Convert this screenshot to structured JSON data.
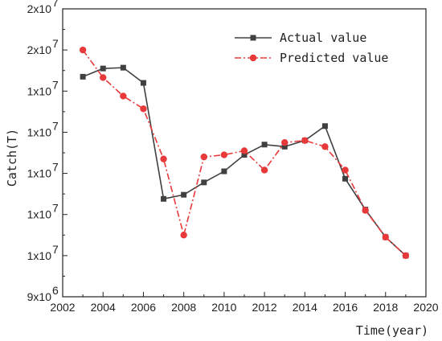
{
  "chart_data": {
    "type": "line",
    "xlabel": "Time(year)",
    "ylabel": "Catch(T)",
    "x": [
      2003,
      2004,
      2005,
      2006,
      2007,
      2008,
      2009,
      2010,
      2011,
      2012,
      2013,
      2014,
      2015,
      2016,
      2017,
      2018,
      2019
    ],
    "xlim": [
      2002,
      2020
    ],
    "ylim": [
      9000000,
      16000000
    ],
    "x_ticks": [
      {
        "value": 2002,
        "label": "2002"
      },
      {
        "value": 2004,
        "label": "2004"
      },
      {
        "value": 2006,
        "label": "2006"
      },
      {
        "value": 2008,
        "label": "2008"
      },
      {
        "value": 2010,
        "label": "2010"
      },
      {
        "value": 2012,
        "label": "2012"
      },
      {
        "value": 2014,
        "label": "2014"
      },
      {
        "value": 2016,
        "label": "2016"
      },
      {
        "value": 2018,
        "label": "2018"
      },
      {
        "value": 2020,
        "label": "2020"
      }
    ],
    "y_ticks": [
      {
        "value": 9000000,
        "label": "9x10",
        "exp": "6"
      },
      {
        "value": 10000000,
        "label": "1x10",
        "exp": "7"
      },
      {
        "value": 11000000,
        "label": "1x10",
        "exp": "7"
      },
      {
        "value": 12000000,
        "label": "1x10",
        "exp": "7"
      },
      {
        "value": 13000000,
        "label": "1x10",
        "exp": "7"
      },
      {
        "value": 14000000,
        "label": "1x10",
        "exp": "7"
      },
      {
        "value": 15000000,
        "label": "2x10",
        "exp": "7"
      },
      {
        "value": 16000000,
        "label": "2x10",
        "exp": "7"
      }
    ],
    "grid": false,
    "legend": "top-right",
    "series": [
      {
        "name": "Actual value",
        "color": "#404040",
        "marker": "square",
        "line": "solid",
        "values": [
          14350000,
          14550000,
          14570000,
          14200000,
          11380000,
          11480000,
          11780000,
          12050000,
          12450000,
          12700000,
          12650000,
          12800000,
          13150000,
          11870000,
          11120000,
          10450000,
          10000000
        ]
      },
      {
        "name": "Predicted value",
        "color": "#e8393a",
        "marker": "circle",
        "line": "dashdot",
        "values": [
          15000000,
          14330000,
          13880000,
          13570000,
          12350000,
          10500000,
          12400000,
          12450000,
          12550000,
          12080000,
          12750000,
          12800000,
          12650000,
          12080000,
          11100000,
          10450000,
          10000000
        ]
      }
    ]
  }
}
